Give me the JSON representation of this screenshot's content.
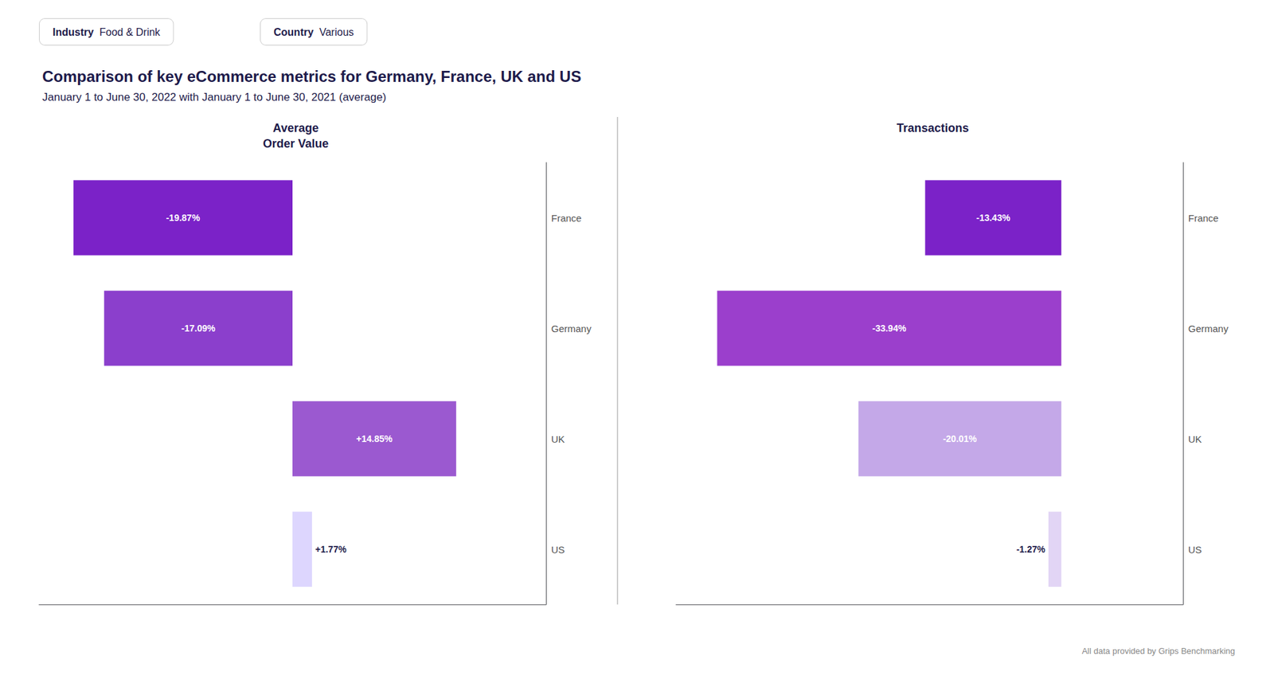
{
  "title": "Comparison of key eCommerce metrics for Germany, France, UK and US",
  "subtitle": "January 1 to June 30, 2022 with January 1 to June 30, 2021 (average)",
  "annotations": [
    "Industry",
    "Food & Drink",
    "Country",
    "Various",
    "All data provided by Grips Benchmarking"
  ],
  "chart_data": [
    {
      "type": "bar",
      "orientation": "horizontal",
      "title": "Average\nOrder Value",
      "categories": [
        "France",
        "Germany",
        "UK",
        "US"
      ],
      "values": [
        -19.87,
        -17.09,
        14.85,
        1.77
      ],
      "value_labels": [
        "-19.87%",
        "-17.09%",
        "+14.85%",
        "+1.77%"
      ],
      "colors": [
        "#7B22C8",
        "#8B3FCC",
        "#9B59D0",
        "#DDD6FE"
      ],
      "xlim": [
        -23,
        23
      ],
      "grid": false,
      "data_labels": true,
      "tick_labels": "y"
    },
    {
      "type": "bar",
      "orientation": "horizontal",
      "title": "Transactions",
      "categories": [
        "France",
        "Germany",
        "UK",
        "US"
      ],
      "values": [
        -13.43,
        -33.94,
        -20.01,
        -1.27
      ],
      "value_labels": [
        "-13.43%",
        "-33.94%",
        "-20.01%",
        "-1.27%"
      ],
      "colors": [
        "#7B22C8",
        "#9B3FCC",
        "#C4A8E8",
        "#E2D5F5"
      ],
      "xlim": [
        -38,
        12
      ],
      "grid": false,
      "data_labels": true,
      "tick_labels": "y"
    }
  ]
}
